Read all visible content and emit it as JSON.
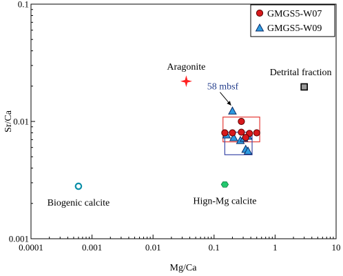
{
  "chart_data": {
    "type": "scatter",
    "xscale": "log",
    "yscale": "log",
    "xlim": [
      0.0001,
      10
    ],
    "ylim": [
      0.001,
      0.1
    ],
    "xlabel": "Mg/Ca",
    "ylabel": "Sr/Ca",
    "x_ticks": [
      "0.0001",
      "0.001",
      "0.01",
      "0.1",
      "1",
      "10"
    ],
    "y_ticks": [
      "0.001",
      "0.01",
      "0.1"
    ],
    "grid": false,
    "legend_position": "top-right",
    "series": [
      {
        "name": "GMGS5-W07",
        "marker": "circle",
        "color": "#d7191c",
        "x": [
          0.15,
          0.2,
          0.28,
          0.38,
          0.5,
          0.28,
          0.33
        ],
        "y": [
          0.008,
          0.008,
          0.0081,
          0.0079,
          0.008,
          0.01,
          0.0073
        ]
      },
      {
        "name": "GMGS5-W09",
        "marker": "triangle",
        "color": "#2e9be0",
        "x": [
          0.2,
          0.16,
          0.21,
          0.27,
          0.31,
          0.36,
          0.33,
          0.36
        ],
        "y": [
          0.0123,
          0.0077,
          0.0073,
          0.0069,
          0.0072,
          0.0075,
          0.0058,
          0.0056
        ]
      }
    ],
    "references": [
      {
        "label": "Aragonite",
        "marker": "star",
        "color": "#ff2020",
        "x": 0.035,
        "y": 0.022
      },
      {
        "label": "Detrital fraction",
        "marker": "square",
        "color": "#9a9a9a",
        "x": 3.0,
        "y": 0.0197
      },
      {
        "label": "Biogenic calcite",
        "marker": "ring",
        "color": "#0b8fa8",
        "x": 0.0006,
        "y": 0.0028
      },
      {
        "label": "Hign-Mg calcite",
        "marker": "hexagon",
        "color": "#22c86e",
        "x": 0.15,
        "y": 0.0029
      }
    ],
    "annotation": {
      "text": "58 mbsf",
      "color": "#243e8c",
      "x": 0.2,
      "y": 0.0123
    },
    "boxes": [
      {
        "color": "#e53935",
        "x": [
          0.14,
          0.56
        ],
        "y": [
          0.0067,
          0.0109
        ]
      },
      {
        "color": "#3a49a8",
        "x": [
          0.15,
          0.42
        ],
        "y": [
          0.0052,
          0.0081
        ]
      }
    ]
  }
}
